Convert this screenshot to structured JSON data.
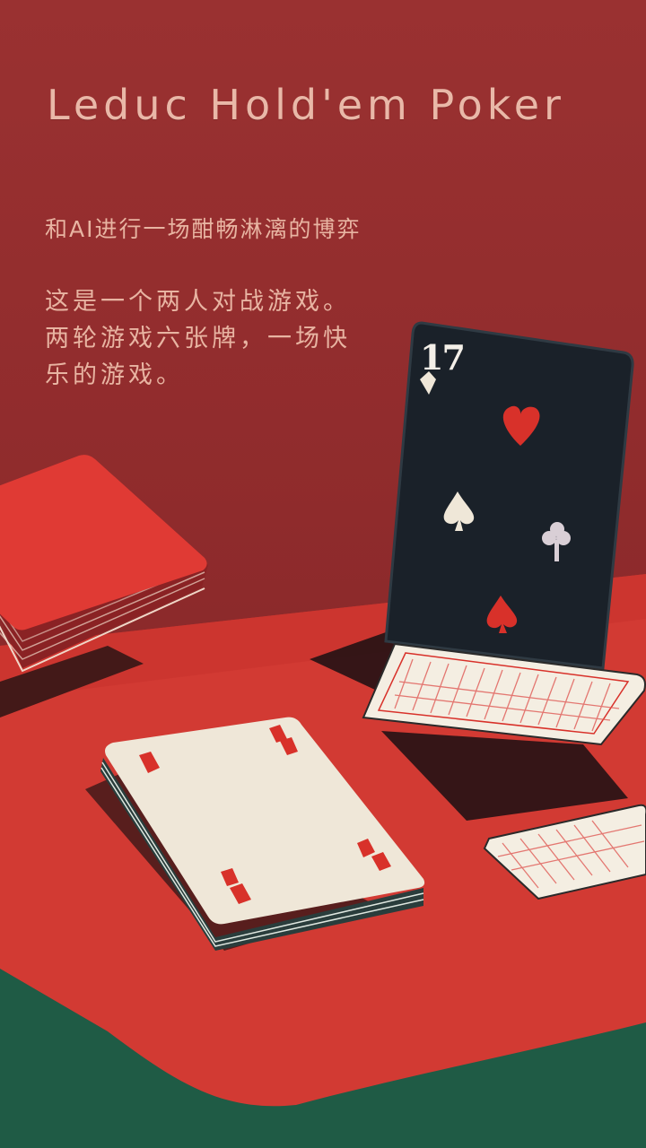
{
  "page": {
    "title": "Leduc Hold'em Poker",
    "subtitle": "和AI进行一场酣畅淋漓的博弈",
    "description": "这是一个两人对战游戏。两轮游戏六张牌，一场快乐的游戏。"
  },
  "cards": {
    "standing_card_rank": "17"
  },
  "colors": {
    "wall": "#8e2b2c",
    "table_felt": "#d23a33",
    "floor": "#1f5b45",
    "card_back_dark": "#1a2129",
    "card_face": "#efe7d8",
    "suit_red": "#d8312a",
    "title_text": "#e9b8a8"
  }
}
